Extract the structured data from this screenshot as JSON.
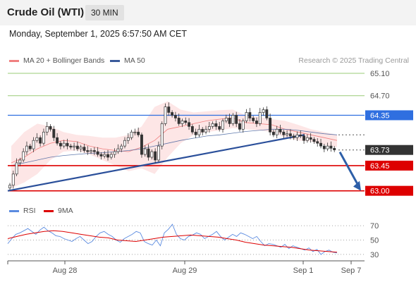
{
  "header": {
    "title": "Crude Oil (WTI)",
    "timeframe": "30 MIN",
    "datetime": "Monday, September 1, 2025 6:57:50 AM CET"
  },
  "legend": {
    "bollinger": "MA 20 + Bollinger Bands",
    "ma50": "MA 50",
    "rsi": "RSI",
    "rsi_ma": "9MA"
  },
  "copyright": "Research © 2025 Trading Central",
  "colors": {
    "bollinger": "#f08080",
    "band_fill": "#fde0e0",
    "ma50": "#3a5a9a",
    "trendline": "#2a4f9a",
    "resistance_line": "#2f6fe0",
    "support_line": "#dd0000",
    "target_line": "#99cc77",
    "current_price": "#333333",
    "arrow": "#2d5fa8",
    "rsi": "#5b8be0",
    "rsi_ma": "#dd0000"
  },
  "chart_data": [
    {
      "type": "candlestick",
      "title": "Crude Oil (WTI)",
      "timeframe": "30 MIN",
      "x_ticks": [
        "Aug 28",
        "Aug 29",
        "Sep 1",
        "Sep 7"
      ],
      "y_range": [
        62.92,
        65.2
      ],
      "price_levels": [
        {
          "value": 65.1,
          "label": "65.10",
          "kind": "target"
        },
        {
          "value": 64.7,
          "label": "64.70",
          "kind": "target"
        },
        {
          "value": 64.35,
          "label": "64.35",
          "kind": "resistance"
        },
        {
          "value": 63.73,
          "label": "63.73",
          "kind": "current"
        },
        {
          "value": 63.45,
          "label": "63.45",
          "kind": "support"
        },
        {
          "value": 63.0,
          "label": "63.00",
          "kind": "support"
        }
      ],
      "closes": [
        63.1,
        63.3,
        63.5,
        63.55,
        63.7,
        63.8,
        63.75,
        63.9,
        63.95,
        63.85,
        64.05,
        64.15,
        64.1,
        63.95,
        63.85,
        63.8,
        63.85,
        63.8,
        63.78,
        63.8,
        63.75,
        63.78,
        63.72,
        63.7,
        63.72,
        63.7,
        63.65,
        63.62,
        63.65,
        63.6,
        63.65,
        63.7,
        63.75,
        63.8,
        63.9,
        63.95,
        64.05,
        64.05,
        64.0,
        63.65,
        63.75,
        63.6,
        63.7,
        63.55,
        63.8,
        64.2,
        64.5,
        64.4,
        64.35,
        64.3,
        64.2,
        64.25,
        64.22,
        64.15,
        64.05,
        64.0,
        64.1,
        64.05,
        64.1,
        64.15,
        64.2,
        64.15,
        64.1,
        64.25,
        64.3,
        64.2,
        64.35,
        64.2,
        64.1,
        64.25,
        64.4,
        64.3,
        64.25,
        64.2,
        64.4,
        64.45,
        64.3,
        64.05,
        64.0,
        64.1,
        64.05,
        64.0,
        64.02,
        63.98,
        63.95,
        64.0,
        63.98,
        63.9,
        63.95,
        63.92,
        63.88,
        63.85,
        63.8,
        63.75,
        63.8,
        63.76,
        63.73
      ],
      "indicators": {
        "ma20_bollinger": {
          "mid": [
            63.5,
            63.6,
            63.75,
            63.85,
            63.9,
            63.88,
            63.8,
            63.75,
            63.72,
            63.7,
            63.78,
            63.9,
            64.1,
            64.15,
            64.2,
            64.25,
            64.28,
            64.3,
            64.22,
            64.2,
            64.18,
            64.1,
            64.05,
            64.0,
            63.95,
            63.9
          ],
          "upper": [
            63.8,
            64.05,
            64.2,
            64.15,
            64.05,
            64.0,
            63.98,
            63.95,
            63.95,
            64.0,
            64.15,
            64.5,
            64.6,
            64.45,
            64.4,
            64.42,
            64.44,
            64.45,
            64.35,
            64.32,
            64.28,
            64.25,
            64.18,
            64.1,
            64.05,
            64.0
          ],
          "lower": [
            63.05,
            63.15,
            63.3,
            63.55,
            63.7,
            63.72,
            63.65,
            63.55,
            63.45,
            63.35,
            63.4,
            63.3,
            63.6,
            63.85,
            64.0,
            64.05,
            64.08,
            64.12,
            64.1,
            64.08,
            64.05,
            63.95,
            63.9,
            63.88,
            63.82,
            63.78
          ]
        },
        "ma50": [
          63.45,
          63.5,
          63.55,
          63.6,
          63.63,
          63.65,
          63.67,
          63.68,
          63.7,
          63.72,
          63.75,
          63.8,
          63.85,
          63.9,
          63.94,
          63.98,
          64.0,
          64.03,
          64.06,
          64.08,
          64.1,
          64.1,
          64.08,
          64.05,
          64.02,
          64.0
        ]
      },
      "trendline": {
        "from": 63.0,
        "to": 64.0
      },
      "projection": {
        "from": 63.73,
        "to": 63.0
      }
    },
    {
      "type": "line",
      "title": "RSI",
      "y_ticks": [
        70,
        50,
        30
      ],
      "y_range": [
        22,
        78
      ],
      "series": [
        {
          "name": "RSI",
          "values": [
            45,
            52,
            58,
            60,
            63,
            66,
            62,
            58,
            64,
            68,
            63,
            60,
            56,
            55,
            52,
            50,
            48,
            52,
            55,
            50,
            45,
            48,
            55,
            60,
            62,
            58,
            55,
            50,
            47,
            52,
            55,
            58,
            62,
            60,
            48,
            45,
            43,
            50,
            42,
            60,
            65,
            72,
            58,
            52,
            50,
            55,
            57,
            60,
            58,
            52,
            55,
            58,
            62,
            55,
            50,
            54,
            58,
            55,
            60,
            58,
            55,
            52,
            55,
            48,
            42,
            45,
            44,
            42,
            40,
            44,
            38,
            42,
            40,
            38,
            36,
            39,
            34,
            37,
            30,
            34,
            36,
            33,
            32
          ]
        },
        {
          "name": "9MA",
          "values": [
            52,
            55,
            58,
            60,
            62,
            63,
            62,
            60,
            58,
            56,
            54,
            53,
            50,
            49,
            48,
            50,
            52,
            54,
            55,
            56,
            57,
            56,
            55,
            54,
            52,
            50,
            47,
            45,
            43,
            42,
            41,
            40,
            38,
            36,
            35,
            34,
            33
          ]
        }
      ]
    }
  ]
}
